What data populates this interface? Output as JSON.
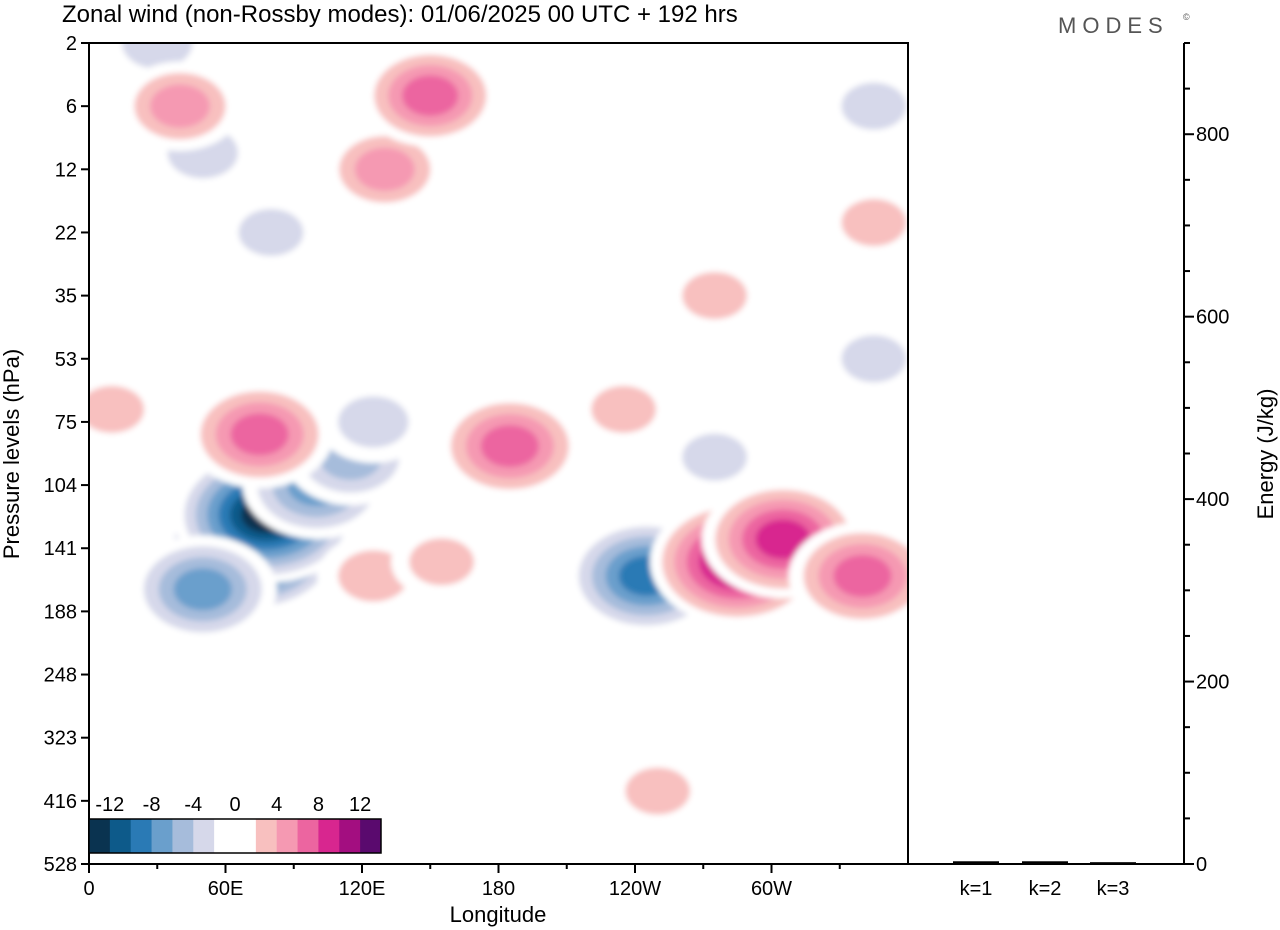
{
  "title": "Zonal wind (non-Rossby modes):  01/06/2025  00 UTC  + 192 hrs",
  "logo": "MODES",
  "logo_mark": "©",
  "chart_data": {
    "type": "heatmap",
    "title": "Zonal wind (non-Rossby modes):  01/06/2025  00 UTC  + 192 hrs",
    "xlabel": "Longitude",
    "ylabel": "Pressure levels (hPa)",
    "xticks": [
      "0",
      "60E",
      "120E",
      "180",
      "120W",
      "60W"
    ],
    "xtick_values": [
      0,
      60,
      120,
      180,
      240,
      300
    ],
    "xlim": [
      0,
      360
    ],
    "yticks": [
      "2",
      "6",
      "12",
      "22",
      "35",
      "53",
      "75",
      "104",
      "141",
      "188",
      "248",
      "323",
      "416",
      "528"
    ],
    "colorbar": {
      "labels": [
        "-12",
        "-8",
        "-4",
        "0",
        "4",
        "8",
        "12"
      ],
      "levels": [
        -14,
        -12,
        -10,
        -8,
        -6,
        -4,
        -2,
        0,
        2,
        4,
        6,
        8,
        10,
        12,
        14
      ],
      "colors": [
        "#0a3350",
        "#0d5a8a",
        "#2a7ab5",
        "#6a9fcc",
        "#a6bcdb",
        "#d6d8ea",
        "#ffffff",
        "#ffffff",
        "#f8c0bf",
        "#f599b2",
        "#ec65a0",
        "#d8268f",
        "#a30e80",
        "#5a0a6e"
      ]
    },
    "blobs": [
      {
        "lon": 72,
        "level": 141,
        "value": -13
      },
      {
        "lon": 78,
        "level": 120,
        "value": -14
      },
      {
        "lon": 50,
        "level": 170,
        "value": -8
      },
      {
        "lon": 100,
        "level": 104,
        "value": -8
      },
      {
        "lon": 115,
        "level": 90,
        "value": -6
      },
      {
        "lon": 125,
        "level": 75,
        "value": -4
      },
      {
        "lon": 30,
        "level": 2,
        "value": -4
      },
      {
        "lon": 50,
        "level": 10,
        "value": -4
      },
      {
        "lon": 80,
        "level": 22,
        "value": -3
      },
      {
        "lon": 160,
        "level": 35,
        "value": -2
      },
      {
        "lon": 45,
        "level": 70,
        "value": -2
      },
      {
        "lon": 90,
        "level": 248,
        "value": -2
      },
      {
        "lon": 245,
        "level": 160,
        "value": -10
      },
      {
        "lon": 275,
        "level": 90,
        "value": -3
      },
      {
        "lon": 345,
        "level": 53,
        "value": -3
      },
      {
        "lon": 345,
        "level": 6,
        "value": -3
      },
      {
        "lon": 75,
        "level": 80,
        "value": 8
      },
      {
        "lon": 185,
        "level": 85,
        "value": 8
      },
      {
        "lon": 130,
        "level": 12,
        "value": 5
      },
      {
        "lon": 150,
        "level": 5,
        "value": 7
      },
      {
        "lon": 40,
        "level": 6,
        "value": 5
      },
      {
        "lon": 125,
        "level": 160,
        "value": 4
      },
      {
        "lon": 155,
        "level": 150,
        "value": 3
      },
      {
        "lon": 285,
        "level": 150,
        "value": 12
      },
      {
        "lon": 305,
        "level": 135,
        "value": 10
      },
      {
        "lon": 340,
        "level": 160,
        "value": 8
      },
      {
        "lon": 275,
        "level": 35,
        "value": 3
      },
      {
        "lon": 235,
        "level": 70,
        "value": 3
      },
      {
        "lon": 345,
        "level": 20,
        "value": 3
      },
      {
        "lon": 250,
        "level": 400,
        "value": 3
      },
      {
        "lon": 10,
        "level": 70,
        "value": 3
      }
    ]
  },
  "side_panel": {
    "ylabel": "Energy (J/kg)",
    "yticks": [
      "0",
      "200",
      "400",
      "600",
      "800"
    ],
    "ytick_values": [
      0,
      200,
      400,
      600,
      800
    ],
    "ylim": [
      0,
      900
    ],
    "categories": [
      "k=1",
      "k=2",
      "k=3"
    ],
    "values": [
      3,
      3,
      2
    ]
  }
}
